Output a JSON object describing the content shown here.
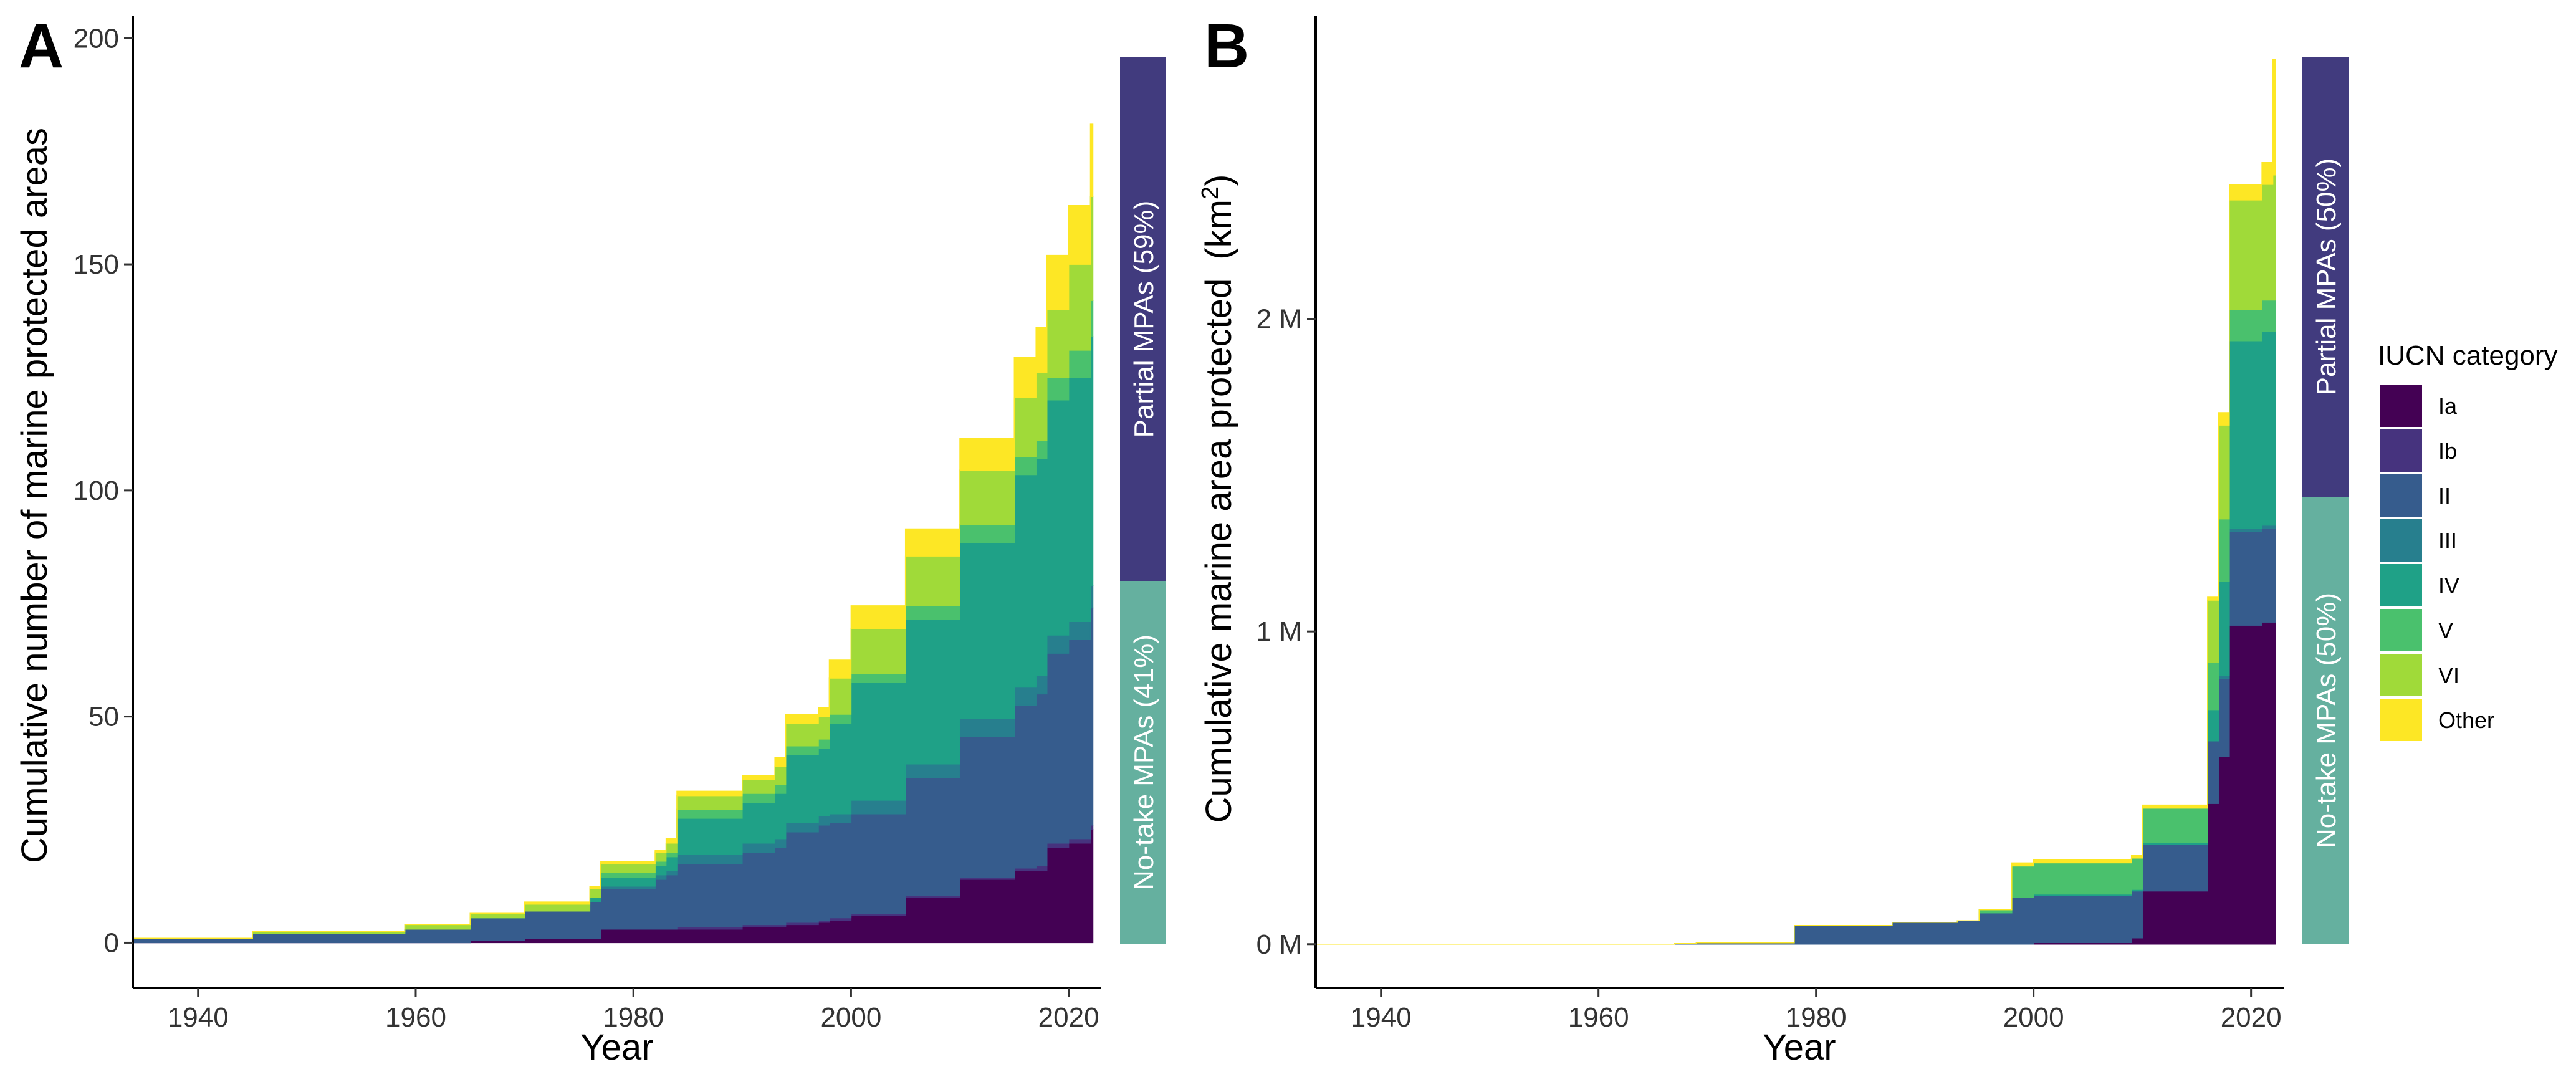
{
  "figure": {
    "legend": {
      "title": "IUCN category",
      "items": [
        {
          "label": "Ia",
          "color": "#440154"
        },
        {
          "label": "Ib",
          "color": "#46337E"
        },
        {
          "label": "II",
          "color": "#365C8D"
        },
        {
          "label": "III",
          "color": "#277F8E"
        },
        {
          "label": "IV",
          "color": "#1FA187"
        },
        {
          "label": "V",
          "color": "#4AC16D"
        },
        {
          "label": "VI",
          "color": "#A0DA39"
        },
        {
          "label": "Other",
          "color": "#FDE725"
        }
      ]
    }
  },
  "chart_data": [
    {
      "panel": "A",
      "type": "area",
      "stacked": true,
      "xlabel": "Year",
      "ylabel": "Cumulative number of marine protected areas",
      "xlim": [
        1934,
        2023
      ],
      "ylim": [
        -10,
        205
      ],
      "xticks": [
        1940,
        1960,
        1980,
        2000,
        2020
      ],
      "yticks": [
        0,
        50,
        100,
        150,
        200
      ],
      "ytick_labels": [
        "0",
        "50",
        "100",
        "150",
        "200"
      ],
      "x": [
        1934,
        1945,
        1959,
        1965,
        1970,
        1976,
        1977,
        1982,
        1983,
        1984,
        1990,
        1993,
        1994,
        1997,
        1998,
        2000,
        2005,
        2010,
        2015,
        2017,
        2018,
        2020,
        2022
      ],
      "series": [
        {
          "name": "Ia",
          "color": "#440154",
          "values": [
            0,
            0,
            0,
            0.5,
            1,
            1,
            3,
            3,
            3,
            3,
            3.5,
            3.5,
            4,
            4.5,
            5,
            6,
            10,
            14,
            16,
            16,
            21,
            22,
            25
          ]
        },
        {
          "name": "Ib",
          "color": "#46337E",
          "values": [
            0,
            0,
            0,
            0,
            0,
            0,
            0,
            0,
            0,
            0.5,
            0.5,
            0.5,
            0.5,
            0.5,
            0.5,
            0.5,
            0.5,
            0.5,
            0.5,
            1,
            1,
            1,
            1
          ]
        },
        {
          "name": "II",
          "color": "#365C8D",
          "values": [
            1,
            2,
            3,
            5,
            6,
            8,
            9,
            11,
            12,
            14,
            16,
            17,
            20,
            21,
            21,
            22,
            26,
            31,
            36,
            38,
            42,
            44,
            48
          ]
        },
        {
          "name": "III",
          "color": "#277F8E",
          "values": [
            0,
            0,
            0,
            0,
            0,
            0,
            0.5,
            1,
            1,
            2,
            2,
            2,
            2,
            2,
            2,
            3,
            3,
            4,
            4,
            4,
            4,
            4,
            5
          ]
        },
        {
          "name": "IV",
          "color": "#1FA187",
          "values": [
            0,
            0,
            0,
            0,
            0,
            1,
            2,
            2,
            3,
            8,
            9,
            10,
            15,
            15,
            20,
            26,
            32,
            39,
            47,
            48,
            52,
            54,
            55
          ]
        },
        {
          "name": "V",
          "color": "#4AC16D",
          "values": [
            0,
            0,
            0,
            0,
            0,
            0,
            1,
            1,
            1,
            2,
            2,
            2,
            2,
            2,
            2,
            2,
            3,
            4,
            4,
            4,
            5,
            6,
            8
          ]
        },
        {
          "name": "VI",
          "color": "#A0DA39",
          "values": [
            0,
            0.5,
            1,
            1,
            1.5,
            2,
            2,
            2,
            2,
            3,
            3,
            4,
            5,
            5,
            8,
            10,
            11,
            12,
            13,
            15,
            15,
            19,
            23
          ]
        },
        {
          "name": "Other",
          "color": "#FDE725",
          "values": [
            0,
            0,
            0,
            0,
            0.5,
            0.5,
            0.5,
            0.5,
            1,
            1,
            1,
            2,
            2,
            2,
            4,
            5,
            6,
            7,
            9,
            10,
            12,
            13,
            16
          ]
        }
      ],
      "side_bar": {
        "segments": [
          {
            "label": "No-take MPAs (41%)",
            "share": 0.41,
            "color": "#65B09F"
          },
          {
            "label": "Partial MPAs (59%)",
            "share": 0.59,
            "color": "#413B7E"
          }
        ]
      }
    },
    {
      "panel": "B",
      "type": "area",
      "stacked": true,
      "xlabel": "Year",
      "ylabel": "Cumulative marine area protected",
      "ylabel_unit_base": "(km",
      "ylabel_unit_sup": "2",
      "ylabel_unit_close": ")",
      "xlim": [
        1934,
        2023
      ],
      "ylim": [
        -0.14,
        2.97
      ],
      "xticks": [
        1940,
        1960,
        1980,
        2000,
        2020
      ],
      "yticks": [
        0,
        1,
        2
      ],
      "ytick_labels": [
        "0 M",
        "1 M",
        "2 M"
      ],
      "x": [
        1934,
        1967,
        1969,
        1978,
        1987,
        1993,
        1995,
        1998,
        2000,
        2009,
        2010,
        2015,
        2016,
        2017,
        2018,
        2021,
        2022
      ],
      "series": [
        {
          "name": "Ia",
          "color": "#440154",
          "values": [
            0,
            0,
            0,
            0,
            0,
            0,
            0,
            0,
            0.005,
            0.02,
            0.17,
            0.17,
            0.45,
            0.6,
            1.02,
            1.03,
            1.03
          ]
        },
        {
          "name": "Ib",
          "color": "#46337E",
          "values": [
            0,
            0,
            0,
            0,
            0,
            0,
            0,
            0,
            0,
            0,
            0,
            0,
            0,
            0,
            0,
            0,
            0
          ]
        },
        {
          "name": "II",
          "color": "#365C8D",
          "values": [
            0,
            0.002,
            0.004,
            0.06,
            0.07,
            0.075,
            0.1,
            0.15,
            0.15,
            0.15,
            0.15,
            0.15,
            0.2,
            0.25,
            0.3,
            0.3,
            0.3
          ]
        },
        {
          "name": "III",
          "color": "#277F8E",
          "values": [
            0,
            0,
            0,
            0,
            0,
            0,
            0,
            0,
            0,
            0,
            0,
            0,
            0,
            0.01,
            0.01,
            0.01,
            0.01
          ]
        },
        {
          "name": "IV",
          "color": "#1FA187",
          "values": [
            0,
            0,
            0,
            0,
            0,
            0,
            0,
            0,
            0.005,
            0.005,
            0.005,
            0.005,
            0.1,
            0.3,
            0.6,
            0.62,
            0.62
          ]
        },
        {
          "name": "V",
          "color": "#4AC16D",
          "values": [
            0,
            0,
            0,
            0,
            0,
            0,
            0.01,
            0.1,
            0.1,
            0.1,
            0.11,
            0.11,
            0.15,
            0.2,
            0.1,
            0.1,
            0.1
          ]
        },
        {
          "name": "VI",
          "color": "#A0DA39",
          "values": [
            0,
            0,
            0,
            0,
            0,
            0,
            0,
            0,
            0,
            0,
            0,
            0,
            0.2,
            0.3,
            0.35,
            0.37,
            0.4
          ]
        },
        {
          "name": "Other",
          "color": "#FDE725",
          "values": [
            0,
            0,
            0,
            0,
            0,
            0,
            0,
            0.01,
            0.01,
            0.01,
            0.01,
            0.01,
            0.01,
            0.04,
            0.05,
            0.07,
            0.37
          ]
        }
      ],
      "side_bar": {
        "segments": [
          {
            "label": "No-take MPAs (50%)",
            "share": 0.5,
            "color": "#65B09F"
          },
          {
            "label": "Partial MPAs (50%)",
            "share": 0.5,
            "color": "#413B7E"
          }
        ]
      }
    }
  ]
}
